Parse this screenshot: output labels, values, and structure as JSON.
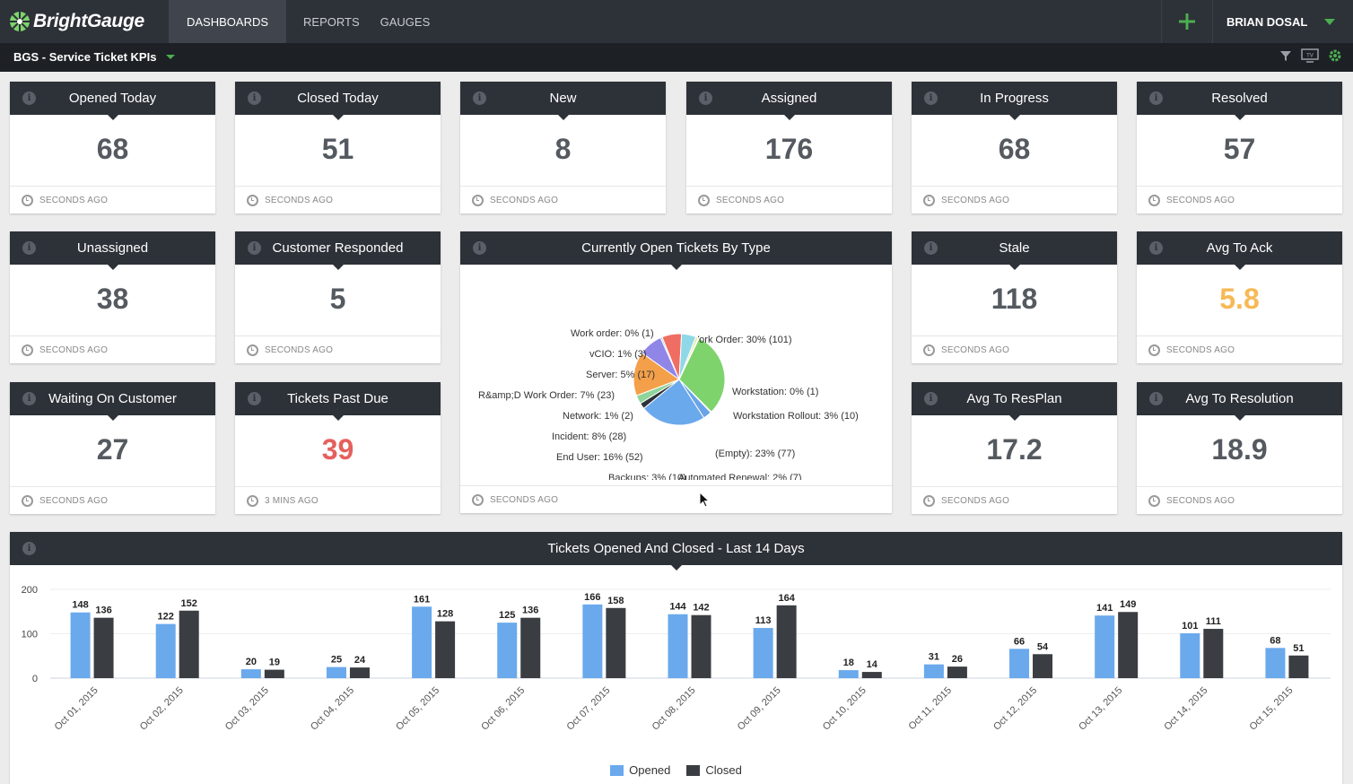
{
  "brand": {
    "name": "BrightGauge"
  },
  "nav": {
    "tabs": [
      {
        "label": "DASHBOARDS",
        "active": true
      },
      {
        "label": "REPORTS",
        "active": false
      },
      {
        "label": "GAUGES",
        "active": false
      }
    ],
    "user": "BRIAN DOSAL"
  },
  "subbar": {
    "dashboard_title": "BGS - Service Ticket KPIs"
  },
  "gauges": [
    {
      "title": "Opened Today",
      "value": "68",
      "updated": "SECONDS AGO",
      "color": "#555a60"
    },
    {
      "title": "Closed Today",
      "value": "51",
      "updated": "SECONDS AGO",
      "color": "#555a60"
    },
    {
      "title": "New",
      "value": "8",
      "updated": "SECONDS AGO",
      "color": "#555a60"
    },
    {
      "title": "Assigned",
      "value": "176",
      "updated": "SECONDS AGO",
      "color": "#555a60"
    },
    {
      "title": "In Progress",
      "value": "68",
      "updated": "SECONDS AGO",
      "color": "#555a60"
    },
    {
      "title": "Resolved",
      "value": "57",
      "updated": "SECONDS AGO",
      "color": "#555a60"
    },
    {
      "title": "Unassigned",
      "value": "38",
      "updated": "SECONDS AGO",
      "color": "#555a60"
    },
    {
      "title": "Customer Responded",
      "value": "5",
      "updated": "SECONDS AGO",
      "color": "#555a60"
    },
    {
      "title": "Stale",
      "value": "118",
      "updated": "SECONDS AGO",
      "color": "#555a60"
    },
    {
      "title": "Avg To Ack",
      "value": "5.8",
      "updated": "SECONDS AGO",
      "color": "#f7b955"
    },
    {
      "title": "Waiting On Customer",
      "value": "27",
      "updated": "SECONDS AGO",
      "color": "#555a60"
    },
    {
      "title": "Tickets Past Due",
      "value": "39",
      "updated": "3 MINS AGO",
      "color": "#e5605c"
    },
    {
      "title": "Avg To ResPlan",
      "value": "17.2",
      "updated": "SECONDS AGO",
      "color": "#555a60"
    },
    {
      "title": "Avg To Resolution",
      "value": "18.9",
      "updated": "SECONDS AGO",
      "color": "#555a60"
    }
  ],
  "pie_card": {
    "title": "Currently Open Tickets By Type",
    "updated": "SECONDS AGO",
    "slices": [
      {
        "label": "Work Order: 30% (101)",
        "value": 101,
        "color": "#7ed36d"
      },
      {
        "label": "Workstation: 0% (1)",
        "value": 1,
        "color": "#b9e08a"
      },
      {
        "label": "Workstation Rollout: 3% (10)",
        "value": 10,
        "color": "#6aa3e8"
      },
      {
        "label": "(Empty): 23% (77)",
        "value": 77,
        "color": "#6aa9ec"
      },
      {
        "label": "Automated Renewal: 2% (7)",
        "value": 7,
        "color": "#2d3138"
      },
      {
        "label": "Backups: 3% (10)",
        "value": 10,
        "color": "#8fd49a"
      },
      {
        "label": "End User: 16% (52)",
        "value": 52,
        "color": "#f4a04a"
      },
      {
        "label": "Incident: 8% (28)",
        "value": 28,
        "color": "#8f86e8"
      },
      {
        "label": "Network: 1% (2)",
        "value": 2,
        "color": "#9ecfe4"
      },
      {
        "label": "R&amp;D Work Order: 7% (23)",
        "value": 23,
        "color": "#f06d64"
      },
      {
        "label": "Server: 5% (17)",
        "value": 17,
        "color": "#8fd8e8"
      },
      {
        "label": "vCIO: 1% (3)",
        "value": 3,
        "color": "#e8e8a0"
      },
      {
        "label": "Work order: 0% (1)",
        "value": 1,
        "color": "#c0a0e0"
      }
    ]
  },
  "bar_card": {
    "title": "Tickets Opened And Closed - Last 14 Days"
  },
  "chart_data": {
    "type": "bar",
    "title": "Tickets Opened And Closed - Last 14 Days",
    "categories": [
      "Oct 01, 2015",
      "Oct 02, 2015",
      "Oct 03, 2015",
      "Oct 04, 2015",
      "Oct 05, 2015",
      "Oct 06, 2015",
      "Oct 07, 2015",
      "Oct 08, 2015",
      "Oct 09, 2015",
      "Oct 10, 2015",
      "Oct 11, 2015",
      "Oct 12, 2015",
      "Oct 13, 2015",
      "Oct 14, 2015",
      "Oct 15, 2015"
    ],
    "series": [
      {
        "name": "Opened",
        "color": "#6aa9ec",
        "values": [
          148,
          122,
          20,
          25,
          161,
          125,
          166,
          144,
          113,
          18,
          31,
          66,
          141,
          101,
          68
        ]
      },
      {
        "name": "Closed",
        "color": "#3a3d42",
        "values": [
          136,
          152,
          19,
          24,
          128,
          136,
          158,
          142,
          164,
          14,
          26,
          54,
          149,
          111,
          51
        ]
      }
    ],
    "yticks": [
      "200",
      "100",
      "0"
    ],
    "ylim": [
      0,
      200
    ],
    "legend": "bottom"
  }
}
